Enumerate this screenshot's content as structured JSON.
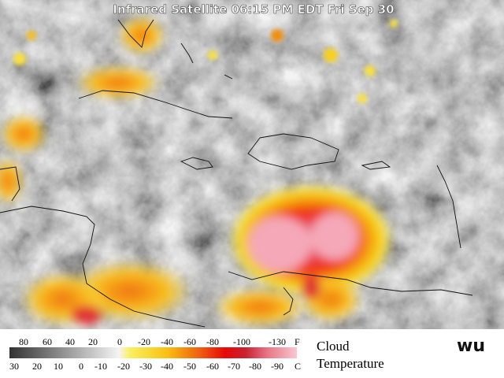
{
  "map": {
    "title": "Infrared Satellite 06:15 PM EDT Fri Sep 30"
  },
  "legend": {
    "fahrenheit": [
      80,
      60,
      40,
      20,
      0,
      -20,
      -40,
      -60,
      -80,
      -100,
      -130
    ],
    "fahrenheit_unit": "F",
    "celsius": [
      30,
      20,
      10,
      0,
      -10,
      -20,
      -30,
      -40,
      -50,
      -60,
      -70,
      -80,
      -90
    ],
    "celsius_unit": "C",
    "label_line1": "Cloud",
    "label_line2": "Temperature",
    "logo": "wu"
  }
}
